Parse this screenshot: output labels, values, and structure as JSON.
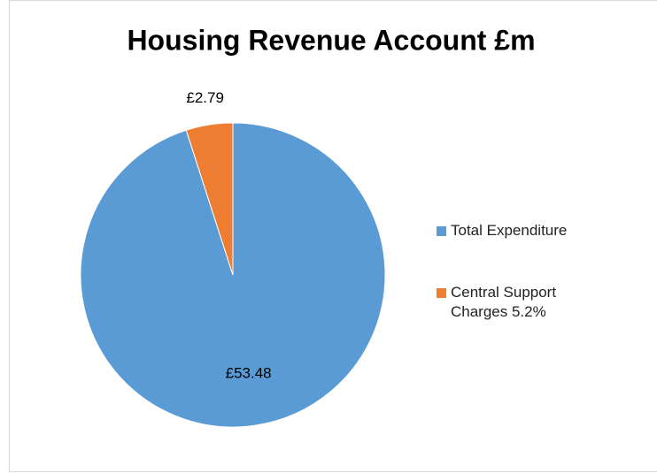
{
  "chart_data": {
    "type": "pie",
    "title": "Housing Revenue Account £m",
    "categories": [
      "Total Expenditure",
      "Central Support Charges 5.2%"
    ],
    "values": [
      53.48,
      2.79
    ],
    "value_labels": [
      "£53.48",
      "£2.79"
    ],
    "colors": [
      "#5b9bd5",
      "#ed7d31"
    ],
    "legend": "right"
  }
}
